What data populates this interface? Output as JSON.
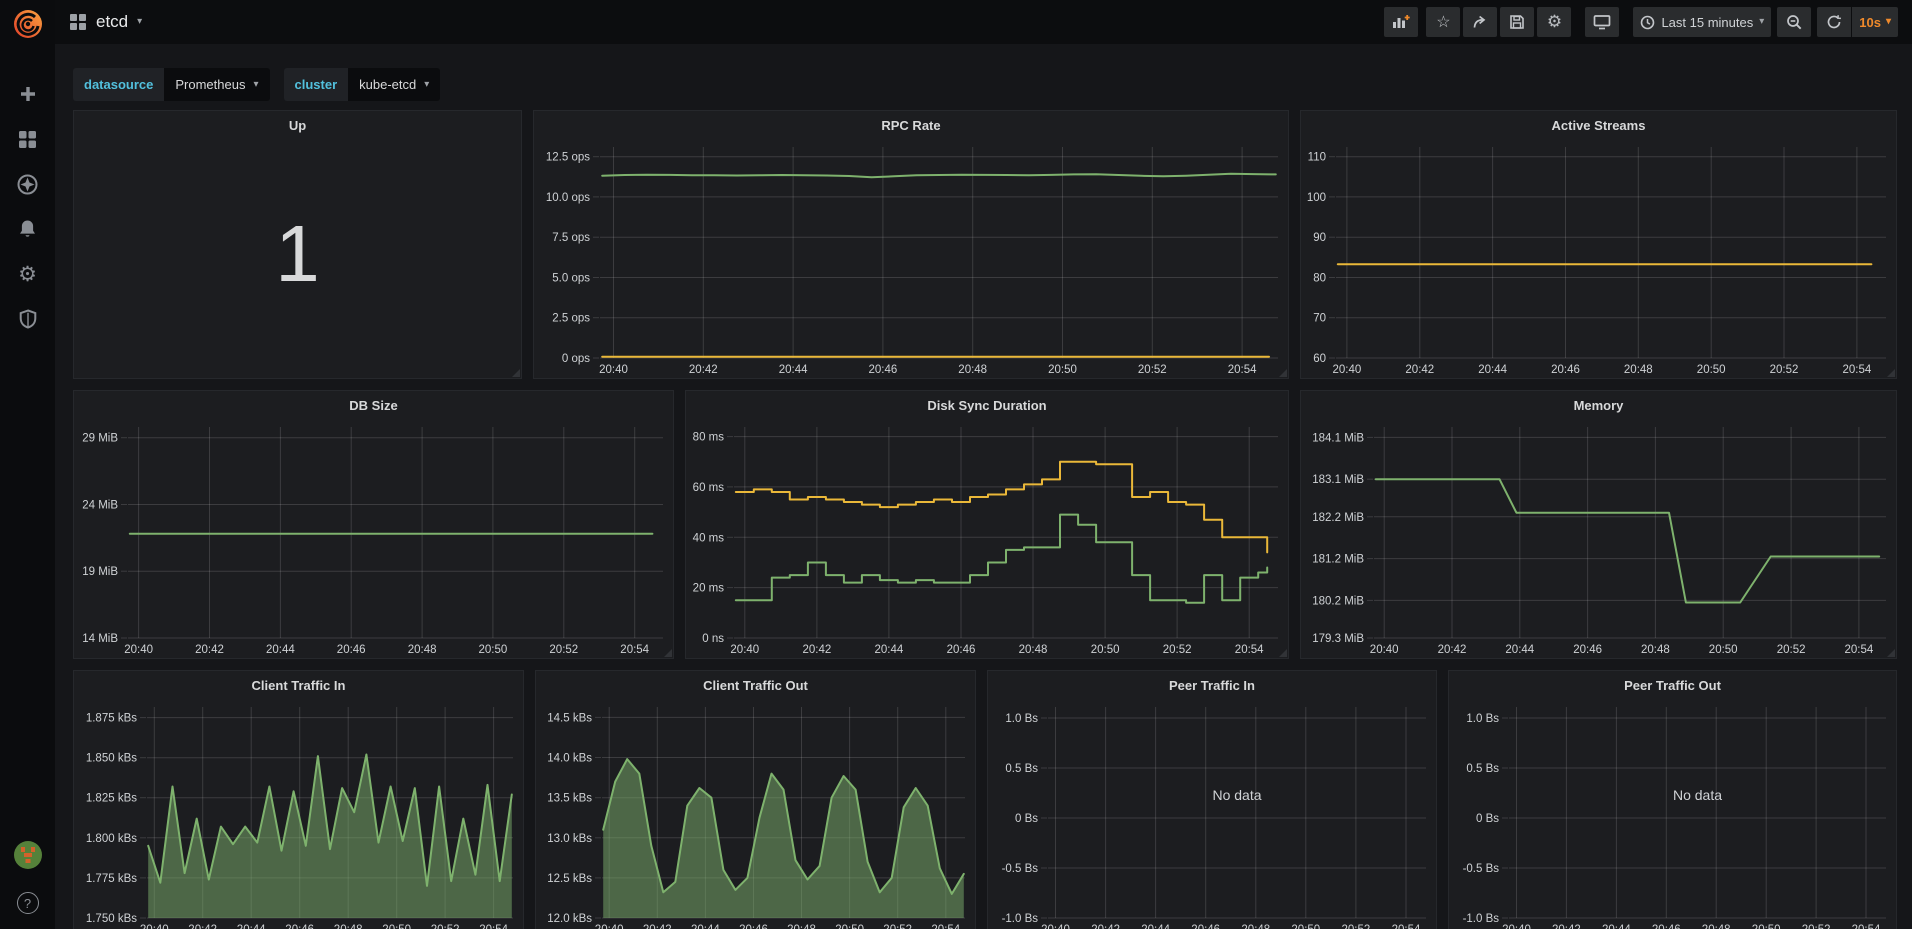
{
  "navbar": {
    "title": "etcd",
    "time_range": "Last 15 minutes",
    "refresh_interval": "10s"
  },
  "variables": [
    {
      "label": "datasource",
      "value": "Prometheus"
    },
    {
      "label": "cluster",
      "value": "kube-etcd"
    }
  ],
  "colors": {
    "accent_orange": "#f08a2b",
    "variable_label_cyan": "#52c0dd",
    "series_green": "#7eb26d",
    "series_yellow": "#eab839",
    "panel_bg": "#1c1d20",
    "page_bg": "#151619"
  },
  "panels": [
    {
      "title": "Up",
      "type": "singlestat",
      "value": "1"
    },
    {
      "title": "RPC Rate",
      "type": "graph"
    },
    {
      "title": "Active Streams",
      "type": "graph"
    },
    {
      "title": "DB Size",
      "type": "graph"
    },
    {
      "title": "Disk Sync Duration",
      "type": "graph"
    },
    {
      "title": "Memory",
      "type": "graph"
    },
    {
      "title": "Client Traffic In",
      "type": "graph"
    },
    {
      "title": "Client Traffic Out",
      "type": "graph"
    },
    {
      "title": "Peer Traffic In",
      "type": "graph",
      "no_data": "No data"
    },
    {
      "title": "Peer Traffic Out",
      "type": "graph",
      "no_data": "No data"
    }
  ],
  "chart_data": {
    "x_ticks_shared": [
      {
        "v": 1240,
        "label": "20:40"
      },
      {
        "v": 1242,
        "label": "20:42"
      },
      {
        "v": 1244,
        "label": "20:44"
      },
      {
        "v": 1246,
        "label": "20:46"
      },
      {
        "v": 1248,
        "label": "20:48"
      },
      {
        "v": 1250,
        "label": "20:50"
      },
      {
        "v": 1252,
        "label": "20:52"
      },
      {
        "v": 1254,
        "label": "20:54"
      }
    ],
    "charts": {
      "rpc_rate": {
        "type": "line",
        "title": "RPC Rate",
        "x_domain": [
          1239.7,
          1254.8
        ],
        "y_domain": [
          0,
          13.1
        ],
        "y_ticks": [
          {
            "v": 0,
            "label": "0 ops"
          },
          {
            "v": 2.5,
            "label": "2.5 ops"
          },
          {
            "v": 5,
            "label": "5.0 ops"
          },
          {
            "v": 7.5,
            "label": "7.5 ops"
          },
          {
            "v": 10,
            "label": "10.0 ops"
          },
          {
            "v": 12.5,
            "label": "12.5 ops"
          }
        ],
        "series": [
          {
            "color": "#7eb26d",
            "x": [
              1239.75,
              1240.25,
              1240.75,
              1241.25,
              1241.75,
              1242.25,
              1242.75,
              1243.25,
              1243.75,
              1244.25,
              1244.75,
              1245.25,
              1245.75,
              1246.25,
              1246.75,
              1247.25,
              1247.75,
              1248.25,
              1248.75,
              1249.25,
              1249.75,
              1250.25,
              1250.75,
              1251.25,
              1251.75,
              1252.25,
              1252.75,
              1253.25,
              1253.75,
              1254.25,
              1254.75
            ],
            "y": [
              11.32,
              11.36,
              11.38,
              11.37,
              11.35,
              11.34,
              11.33,
              11.34,
              11.36,
              11.35,
              11.33,
              11.3,
              11.22,
              11.28,
              11.34,
              11.36,
              11.38,
              11.37,
              11.36,
              11.35,
              11.37,
              11.4,
              11.41,
              11.36,
              11.31,
              11.28,
              11.32,
              11.38,
              11.44,
              11.42,
              11.4
            ]
          },
          {
            "color": "#eab839",
            "x": [
              1239.75,
              1254.6
            ],
            "y": [
              0.08,
              0.08
            ]
          }
        ]
      },
      "active_streams": {
        "type": "line",
        "title": "Active Streams",
        "x_domain": [
          1239.7,
          1254.8
        ],
        "y_domain": [
          60,
          112.4
        ],
        "y_ticks": [
          {
            "v": 60,
            "label": "60"
          },
          {
            "v": 70,
            "label": "70"
          },
          {
            "v": 80,
            "label": "80"
          },
          {
            "v": 90,
            "label": "90"
          },
          {
            "v": 100,
            "label": "100"
          },
          {
            "v": 110,
            "label": "110"
          }
        ],
        "series": [
          {
            "color": "#eab839",
            "x": [
              1239.75,
              1254.4
            ],
            "y": [
              83.3,
              83.3
            ]
          }
        ]
      },
      "db_size": {
        "type": "line",
        "title": "DB Size",
        "x_domain": [
          1239.7,
          1254.8
        ],
        "y_domain": [
          14,
          29.8
        ],
        "y_ticks": [
          {
            "v": 14,
            "label": "14 MiB"
          },
          {
            "v": 19,
            "label": "19 MiB"
          },
          {
            "v": 24,
            "label": "24 MiB"
          },
          {
            "v": 29,
            "label": "29 MiB"
          }
        ],
        "series": [
          {
            "color": "#7eb26d",
            "x": [
              1239.75,
              1254.5
            ],
            "y": [
              21.8,
              21.8
            ]
          }
        ]
      },
      "disk_sync": {
        "type": "line",
        "title": "Disk Sync Duration",
        "x_domain": [
          1239.7,
          1254.8
        ],
        "y_domain": [
          0,
          83.8
        ],
        "y_ticks": [
          {
            "v": 0,
            "label": "0 ns"
          },
          {
            "v": 20,
            "label": "20 ms"
          },
          {
            "v": 40,
            "label": "40 ms"
          },
          {
            "v": 60,
            "label": "60 ms"
          },
          {
            "v": 80,
            "label": "80 ms"
          }
        ],
        "series": [
          {
            "color": "#eab839",
            "step": true,
            "x": [
              1239.75,
              1240.25,
              1240.75,
              1241.25,
              1241.75,
              1242.25,
              1242.75,
              1243.25,
              1243.75,
              1244.25,
              1244.75,
              1245.25,
              1245.75,
              1246.25,
              1246.75,
              1247.25,
              1247.75,
              1248.25,
              1248.75,
              1249.25,
              1249.75,
              1250.25,
              1250.75,
              1251.25,
              1251.75,
              1252.25,
              1252.75,
              1253.25,
              1253.75,
              1254.25,
              1254.5
            ],
            "y": [
              58,
              59,
              58,
              55,
              56,
              55,
              54,
              53,
              52,
              53,
              54,
              55,
              54,
              56,
              57,
              59,
              61,
              63,
              70,
              70,
              69,
              69,
              56,
              58,
              54,
              53,
              47,
              40,
              40,
              40,
              34
            ]
          },
          {
            "color": "#7eb26d",
            "step": true,
            "x": [
              1239.75,
              1240.25,
              1240.75,
              1241.25,
              1241.75,
              1242.25,
              1242.75,
              1243.25,
              1243.75,
              1244.25,
              1244.75,
              1245.25,
              1245.75,
              1246.25,
              1246.75,
              1247.25,
              1247.75,
              1248.25,
              1248.75,
              1249.25,
              1249.75,
              1250.25,
              1250.75,
              1251.25,
              1251.75,
              1252.25,
              1252.75,
              1253.25,
              1253.75,
              1254.25,
              1254.5
            ],
            "y": [
              15,
              15,
              24,
              25,
              30,
              25,
              22,
              25,
              23,
              22,
              23,
              22,
              22,
              25,
              30,
              35,
              36,
              36,
              49,
              45,
              38,
              38,
              25,
              15,
              15,
              14,
              25,
              15,
              24,
              26,
              28
            ]
          }
        ]
      },
      "memory": {
        "type": "line",
        "title": "Memory",
        "x_domain": [
          1239.7,
          1254.8
        ],
        "y_domain": [
          179.3,
          184.35
        ],
        "y_ticks": [
          {
            "v": 179.3,
            "label": "179.3 MiB"
          },
          {
            "v": 180.2,
            "label": "180.2 MiB"
          },
          {
            "v": 181.2,
            "label": "181.2 MiB"
          },
          {
            "v": 182.2,
            "label": "182.2 MiB"
          },
          {
            "v": 183.1,
            "label": "183.1 MiB"
          },
          {
            "v": 184.1,
            "label": "184.1 MiB"
          }
        ],
        "series": [
          {
            "color": "#7eb26d",
            "x": [
              1239.75,
              1243.4,
              1243.9,
              1248.4,
              1248.9,
              1250.5,
              1251.4,
              1254.6
            ],
            "y": [
              183.1,
              183.1,
              182.3,
              182.3,
              180.15,
              180.15,
              181.25,
              181.25
            ]
          }
        ]
      },
      "client_in": {
        "type": "area",
        "title": "Client Traffic In",
        "x_domain": [
          1239.7,
          1254.8
        ],
        "y_domain": [
          1.75,
          1.8816
        ],
        "y_ticks": [
          {
            "v": 1.75,
            "label": "1.750 kBs"
          },
          {
            "v": 1.775,
            "label": "1.775 kBs"
          },
          {
            "v": 1.8,
            "label": "1.800 kBs"
          },
          {
            "v": 1.825,
            "label": "1.825 kBs"
          },
          {
            "v": 1.85,
            "label": "1.850 kBs"
          },
          {
            "v": 1.875,
            "label": "1.875 kBs"
          }
        ],
        "series": [
          {
            "color": "#7eb26d",
            "fill": true,
            "x": [
              1239.75,
              1240.25,
              1240.75,
              1241.25,
              1241.75,
              1242.25,
              1242.75,
              1243.25,
              1243.75,
              1244.25,
              1244.75,
              1245.25,
              1245.75,
              1246.25,
              1246.75,
              1247.25,
              1247.75,
              1248.25,
              1248.75,
              1249.25,
              1249.75,
              1250.25,
              1250.75,
              1251.25,
              1251.75,
              1252.25,
              1252.75,
              1253.25,
              1253.75,
              1254.25,
              1254.75
            ],
            "y": [
              1.795,
              1.772,
              1.832,
              1.778,
              1.812,
              1.774,
              1.807,
              1.796,
              1.807,
              1.797,
              1.832,
              1.792,
              1.829,
              1.795,
              1.851,
              1.793,
              1.831,
              1.816,
              1.852,
              1.797,
              1.832,
              1.798,
              1.831,
              1.77,
              1.832,
              1.773,
              1.812,
              1.777,
              1.833,
              1.773,
              1.827
            ]
          }
        ]
      },
      "client_out": {
        "type": "area",
        "title": "Client Traffic Out",
        "x_domain": [
          1239.7,
          1254.8
        ],
        "y_domain": [
          12,
          14.63
        ],
        "y_ticks": [
          {
            "v": 12,
            "label": "12.0 kBs"
          },
          {
            "v": 12.5,
            "label": "12.5 kBs"
          },
          {
            "v": 13,
            "label": "13.0 kBs"
          },
          {
            "v": 13.5,
            "label": "13.5 kBs"
          },
          {
            "v": 14,
            "label": "14.0 kBs"
          },
          {
            "v": 14.5,
            "label": "14.5 kBs"
          }
        ],
        "series": [
          {
            "color": "#7eb26d",
            "fill": true,
            "x": [
              1239.75,
              1240.25,
              1240.75,
              1241.25,
              1241.75,
              1242.25,
              1242.75,
              1243.25,
              1243.75,
              1244.25,
              1244.75,
              1245.25,
              1245.75,
              1246.25,
              1246.75,
              1247.25,
              1247.75,
              1248.25,
              1248.75,
              1249.25,
              1249.75,
              1250.25,
              1250.75,
              1251.25,
              1251.75,
              1252.25,
              1252.75,
              1253.25,
              1253.75,
              1254.25,
              1254.75
            ],
            "y": [
              13.1,
              13.7,
              13.98,
              13.8,
              12.9,
              12.32,
              12.45,
              13.4,
              13.62,
              13.5,
              12.6,
              12.35,
              12.5,
              13.25,
              13.8,
              13.6,
              12.72,
              12.48,
              12.65,
              13.5,
              13.77,
              13.6,
              12.7,
              12.32,
              12.5,
              13.38,
              13.62,
              13.4,
              12.62,
              12.3,
              12.55
            ]
          }
        ]
      },
      "peer_in": {
        "type": "line",
        "title": "Peer Traffic In",
        "no_data": "No data",
        "x_domain": [
          1239.7,
          1254.8
        ],
        "y_domain": [
          -1,
          1.11
        ],
        "y_ticks": [
          {
            "v": -1,
            "label": "-1.0 Bs"
          },
          {
            "v": -0.5,
            "label": "-0.5 Bs"
          },
          {
            "v": 0,
            "label": "0 Bs"
          },
          {
            "v": 0.5,
            "label": "0.5 Bs"
          },
          {
            "v": 1,
            "label": "1.0 Bs"
          }
        ],
        "series": []
      },
      "peer_out": {
        "type": "line",
        "title": "Peer Traffic Out",
        "no_data": "No data",
        "x_domain": [
          1239.7,
          1254.8
        ],
        "y_domain": [
          -1,
          1.11
        ],
        "y_ticks": [
          {
            "v": -1,
            "label": "-1.0 Bs"
          },
          {
            "v": -0.5,
            "label": "-0.5 Bs"
          },
          {
            "v": 0,
            "label": "0 Bs"
          },
          {
            "v": 0.5,
            "label": "0.5 Bs"
          },
          {
            "v": 1,
            "label": "1.0 Bs"
          }
        ],
        "series": []
      }
    }
  }
}
